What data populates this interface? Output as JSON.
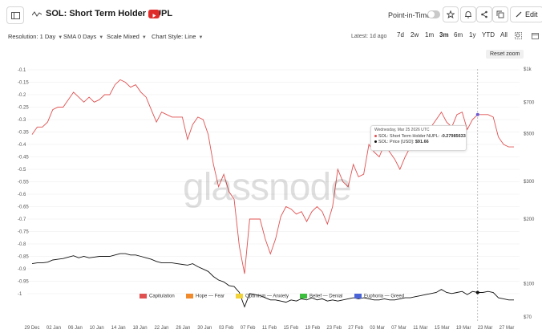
{
  "header": {
    "title": "SOL: Short Term Holder NUPL",
    "point_in_time_label": "Point-in-Time",
    "edit_label": "Edit"
  },
  "controls": {
    "resolution": "Resolution: 1 Day",
    "sma": "SMA 0 Days",
    "scale": "Scale Mixed",
    "chart_style": "Chart Style: Line",
    "latest": "Latest: 1d ago",
    "ranges": [
      "7d",
      "2w",
      "1m",
      "3m",
      "6m",
      "1y",
      "YTD",
      "All"
    ],
    "active_range": "3m"
  },
  "reset_zoom_label": "Reset zoom",
  "watermark": "glassnode",
  "tooltip": {
    "date": "Wednesday, Mar 25 2026 UTC",
    "nupl_label": "SOL: Short Term Holder NUPL:",
    "nupl_value": "-0.27985633",
    "price_label": "SOL: Price [USD]:",
    "price_value": "$91.66"
  },
  "legend": [
    {
      "label": "Capitulation",
      "color": "#e05050"
    },
    {
      "label": "Hope — Fear",
      "color": "#f08a2c"
    },
    {
      "label": "Optimism — Anxiety",
      "color": "#f2d43a"
    },
    {
      "label": "Belief — Denial",
      "color": "#3cbf3c"
    },
    {
      "label": "Euphoria — Greed",
      "color": "#4a63d6"
    }
  ],
  "chart_data": {
    "type": "line",
    "x_tick_labels": [
      "29 Dec",
      "02 Jan",
      "06 Jan",
      "10 Jan",
      "14 Jan",
      "18 Jan",
      "22 Jan",
      "26 Jan",
      "30 Jan",
      "03 Feb",
      "07 Feb",
      "11 Feb",
      "15 Feb",
      "19 Feb",
      "23 Feb",
      "27 Feb",
      "03 Mar",
      "07 Mar",
      "11 Mar",
      "15 Mar",
      "19 Mar",
      "23 Mar",
      "27 Mar"
    ],
    "y_left_ticks": [
      "-0.1",
      "-0.15",
      "-0.2",
      "-0.25",
      "-0.3",
      "-0.35",
      "-0.4",
      "-0.45",
      "-0.5",
      "-0.55",
      "-0.6",
      "-0.65",
      "-0.7",
      "-0.75",
      "-0.8",
      "-0.85",
      "-0.9",
      "-0.95",
      "-1"
    ],
    "y_left_range": [
      -1,
      -0.1
    ],
    "y_right_ticks": [
      "$1k",
      "$700",
      "$500",
      "$300",
      "$200",
      "$100",
      "$70"
    ],
    "y_right_log_range": [
      70,
      1000
    ],
    "grid": "horizontal",
    "series": [
      {
        "name": "SOL: Short Term Holder NUPL",
        "color": "#e05050",
        "values": [
          -0.36,
          -0.33,
          -0.33,
          -0.31,
          -0.26,
          -0.25,
          -0.25,
          -0.22,
          -0.19,
          -0.21,
          -0.23,
          -0.21,
          -0.23,
          -0.22,
          -0.2,
          -0.2,
          -0.16,
          -0.14,
          -0.15,
          -0.17,
          -0.16,
          -0.19,
          -0.21,
          -0.26,
          -0.31,
          -0.27,
          -0.28,
          -0.29,
          -0.29,
          -0.29,
          -0.38,
          -0.32,
          -0.29,
          -0.3,
          -0.36,
          -0.48,
          -0.57,
          -0.52,
          -0.59,
          -0.62,
          -0.81,
          -0.92,
          -0.7,
          -0.7,
          -0.7,
          -0.78,
          -0.84,
          -0.78,
          -0.69,
          -0.65,
          -0.66,
          -0.68,
          -0.67,
          -0.71,
          -0.67,
          -0.65,
          -0.67,
          -0.72,
          -0.65,
          -0.5,
          -0.55,
          -0.57,
          -0.48,
          -0.53,
          -0.52,
          -0.4,
          -0.43,
          -0.45,
          -0.4,
          -0.43,
          -0.46,
          -0.5,
          -0.45,
          -0.41,
          -0.39,
          -0.39,
          -0.36,
          -0.33,
          -0.3,
          -0.27,
          -0.31,
          -0.33,
          -0.28,
          -0.27,
          -0.34,
          -0.3,
          -0.28,
          -0.28,
          -0.28,
          -0.29,
          -0.37,
          -0.4,
          -0.41,
          -0.41
        ]
      },
      {
        "name": "SOL: Price [USD]",
        "color": "#111111",
        "values": [
          124,
          125,
          125,
          126,
          129,
          130,
          131,
          133,
          135,
          132,
          134,
          132,
          133,
          134,
          134,
          134,
          136,
          138,
          138,
          136,
          136,
          134,
          132,
          130,
          127,
          125,
          125,
          125,
          124,
          123,
          122,
          124,
          120,
          117,
          114,
          108,
          104,
          102,
          98,
          97,
          91,
          78,
          90,
          89,
          88,
          86,
          84,
          84,
          83,
          82,
          84,
          83,
          85,
          84,
          86,
          84,
          85,
          83,
          84,
          83,
          84,
          85,
          86,
          85,
          86,
          85,
          84,
          84,
          85,
          84,
          84,
          85,
          86,
          86,
          87,
          88,
          89,
          90,
          91,
          94,
          91,
          90,
          91,
          92,
          89,
          92,
          91,
          91,
          92,
          91,
          86,
          85,
          84,
          84
        ]
      }
    ],
    "highlight_x_index": 86
  }
}
